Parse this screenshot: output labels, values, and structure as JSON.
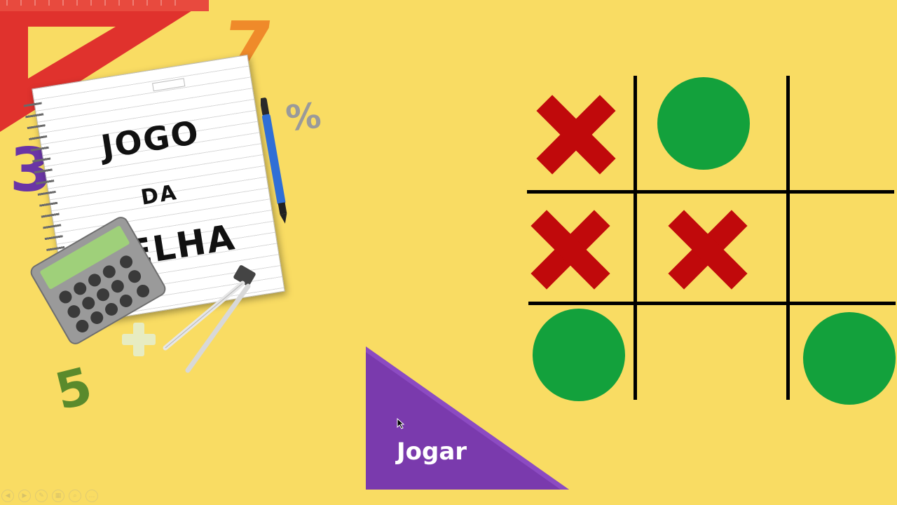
{
  "title": {
    "line1": "JOGO",
    "line2": "DA",
    "line3": "VELHA"
  },
  "play_button": {
    "label": "Jogar",
    "color": "#7a3aad"
  },
  "decorations": {
    "num_7": "7",
    "num_3": "3",
    "num_5": "5",
    "percent": "%"
  },
  "board": {
    "cells": [
      [
        "X",
        "O",
        ""
      ],
      [
        "X",
        "X",
        ""
      ],
      [
        "O",
        "",
        "O"
      ]
    ],
    "x_color": "#c0090b",
    "o_color": "#13a13c",
    "line_color": "#000000"
  },
  "colors": {
    "background": "#f9dc63",
    "ruler": "#e0322d"
  }
}
